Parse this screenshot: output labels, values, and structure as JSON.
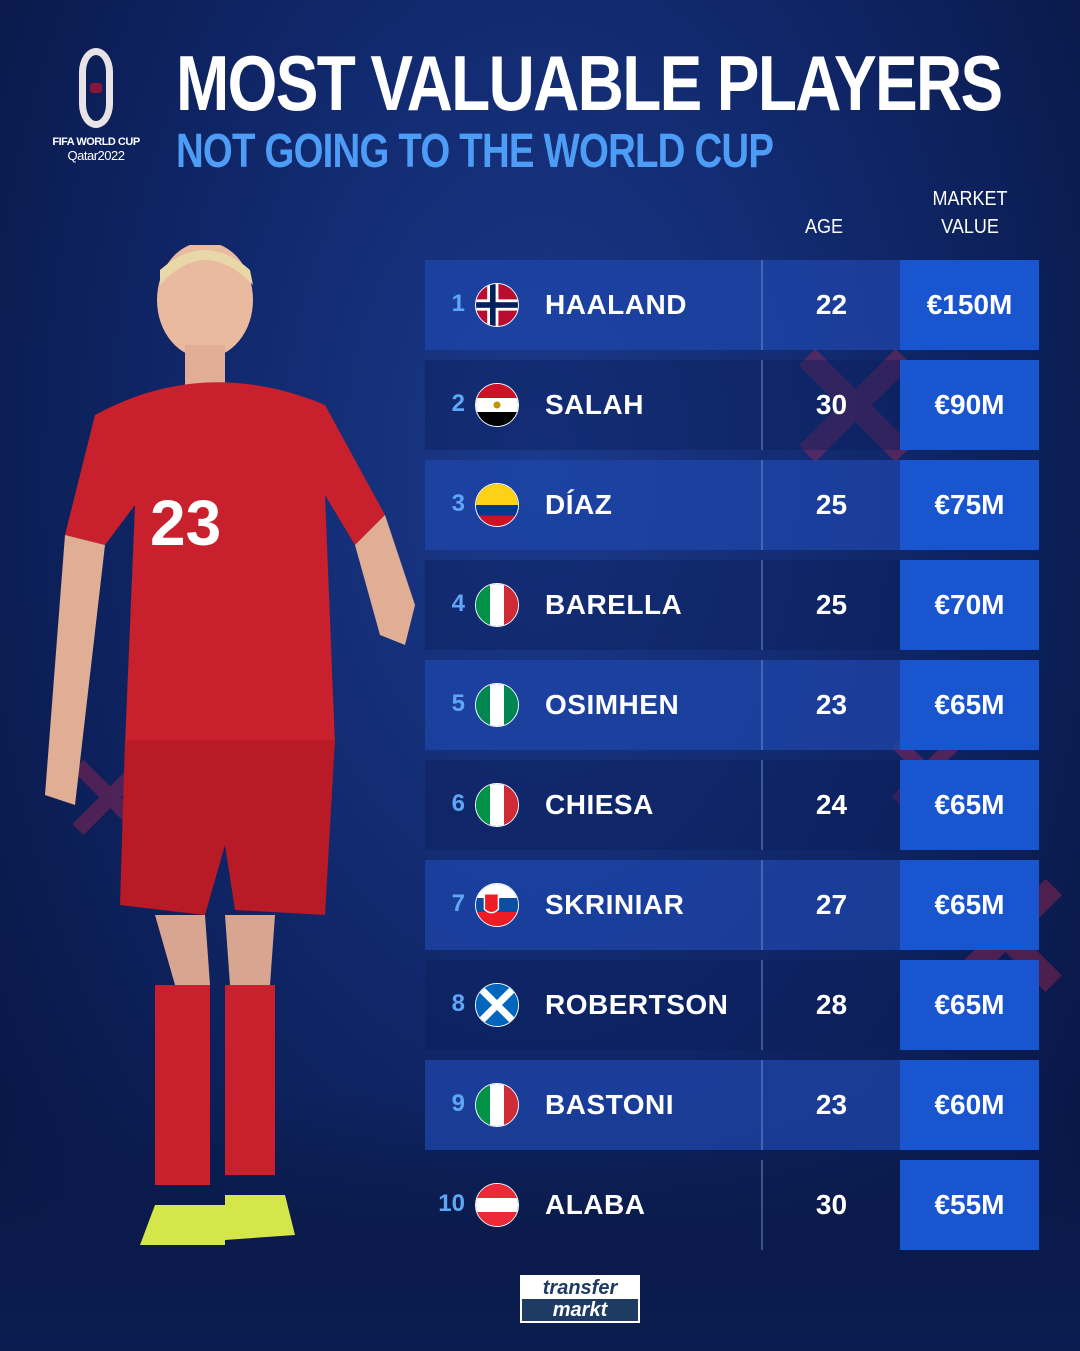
{
  "logo": {
    "line1": "FIFA WORLD CUP",
    "line2": "Qatar2022"
  },
  "title": "MOST VALUABLE PLAYERS",
  "subtitle": "NOT GOING TO THE WORLD CUP",
  "headers": {
    "age": "AGE",
    "market_value_1": "MARKET",
    "market_value_2": "VALUE"
  },
  "players": [
    {
      "rank": "1",
      "flag": "norway",
      "name": "HAALAND",
      "age": "22",
      "value": "€150M"
    },
    {
      "rank": "2",
      "flag": "egypt",
      "name": "SALAH",
      "age": "30",
      "value": "€90M"
    },
    {
      "rank": "3",
      "flag": "colombia",
      "name": "DÍAZ",
      "age": "25",
      "value": "€75M"
    },
    {
      "rank": "4",
      "flag": "italy",
      "name": "BARELLA",
      "age": "25",
      "value": "€70M"
    },
    {
      "rank": "5",
      "flag": "nigeria",
      "name": "OSIMHEN",
      "age": "23",
      "value": "€65M"
    },
    {
      "rank": "6",
      "flag": "italy",
      "name": "CHIESA",
      "age": "24",
      "value": "€65M"
    },
    {
      "rank": "7",
      "flag": "slovakia",
      "name": "SKRINIAR",
      "age": "27",
      "value": "€65M"
    },
    {
      "rank": "8",
      "flag": "scotland",
      "name": "ROBERTSON",
      "age": "28",
      "value": "€65M"
    },
    {
      "rank": "9",
      "flag": "italy",
      "name": "BASTONI",
      "age": "23",
      "value": "€60M"
    },
    {
      "rank": "10",
      "flag": "austria",
      "name": "ALABA",
      "age": "30",
      "value": "€55M"
    }
  ],
  "player_photo": {
    "shirt_number": "23"
  },
  "footer_logo": {
    "line1": "transfer",
    "line2": "markt"
  },
  "colors": {
    "accent": "#4d9cf5",
    "value_box": "#1a55d0",
    "background": "#10276a"
  }
}
